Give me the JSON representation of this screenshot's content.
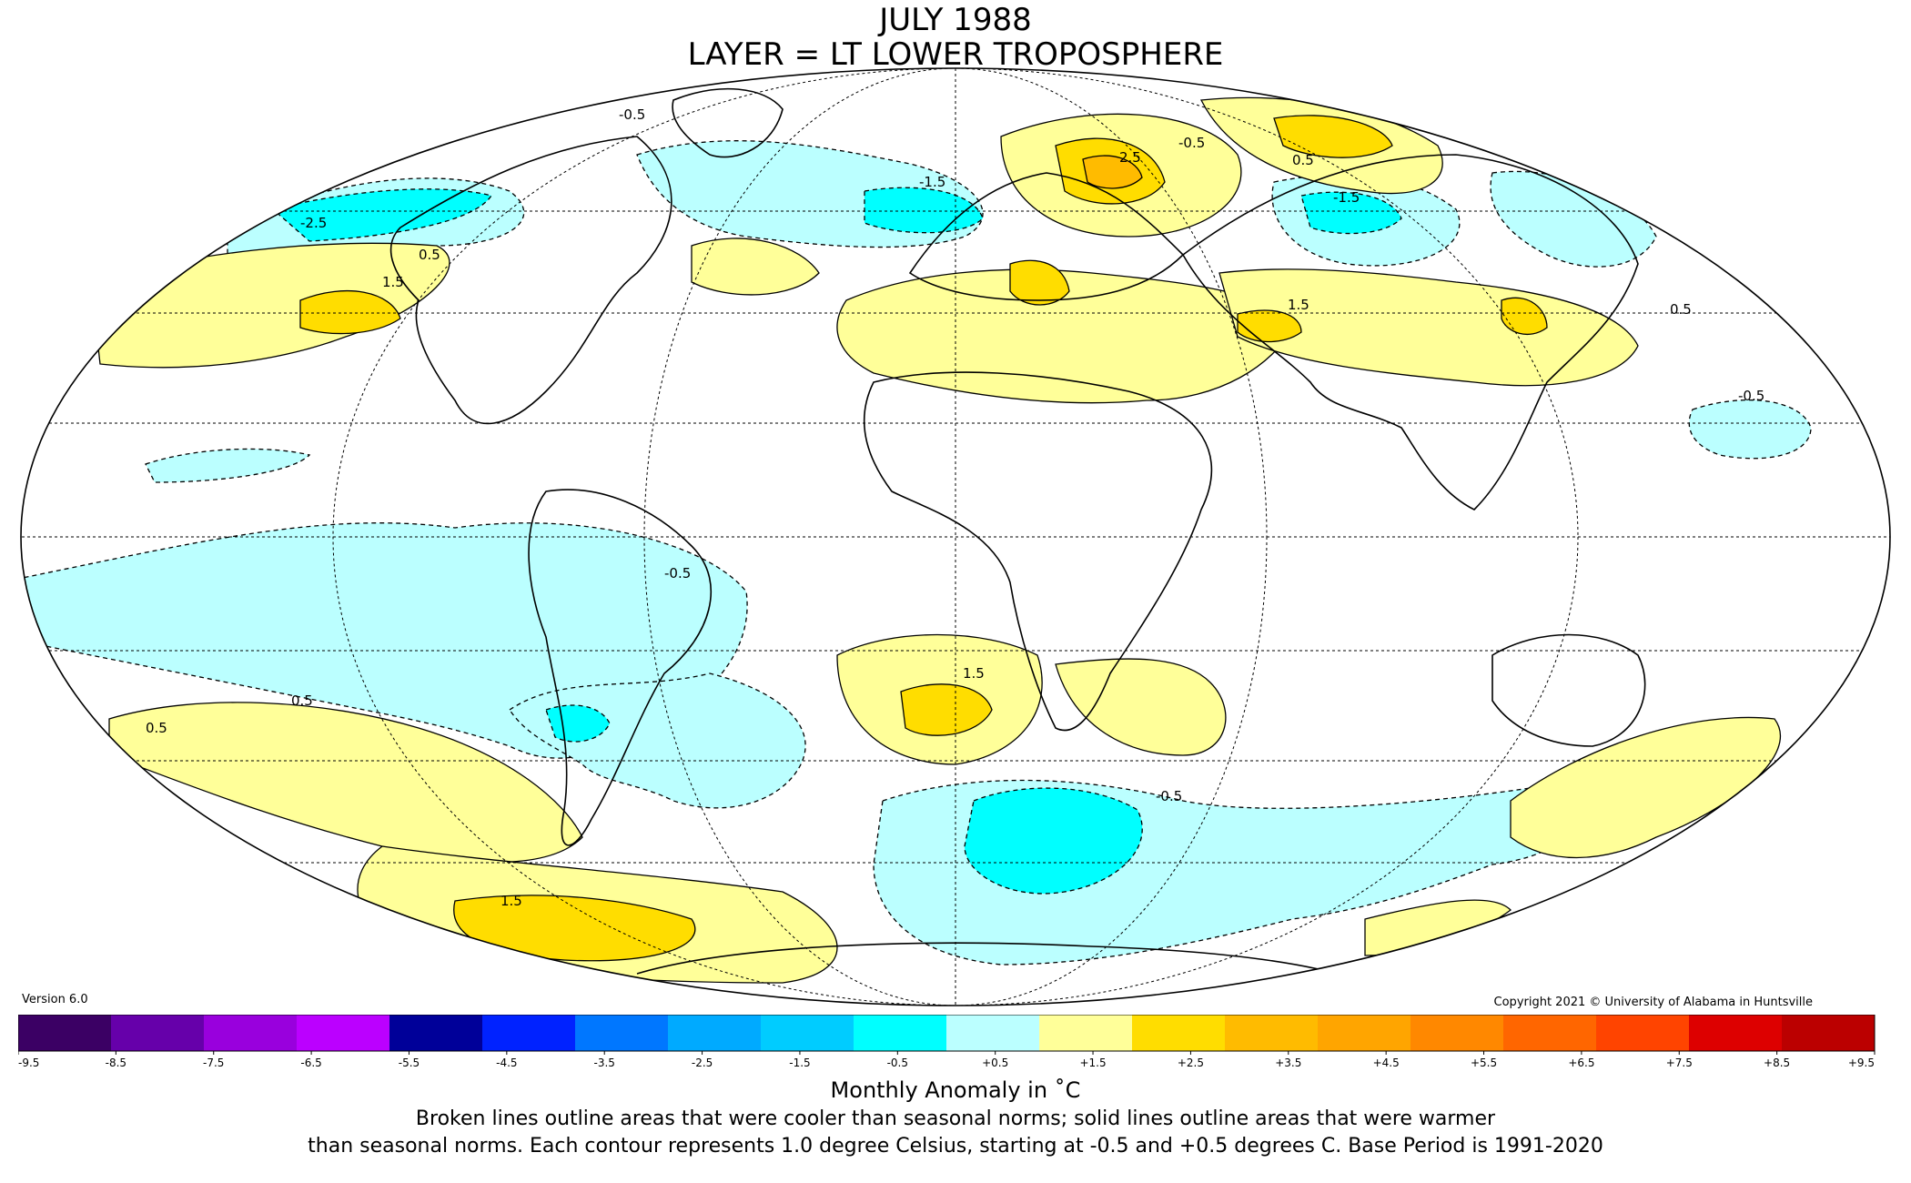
{
  "title": "JULY 1988",
  "subtitle": "LAYER = LT LOWER TROPOSPHERE",
  "version": "Version 6.0",
  "copyright": "Copyright 2021 © University of Alabama in Huntsville",
  "colorbar": {
    "label": "Monthly Anomaly in ˚C",
    "ticks": [
      "-9.5",
      "-8.5",
      "-7.5",
      "-6.5",
      "-5.5",
      "-4.5",
      "-3.5",
      "-2.5",
      "-1.5",
      "-0.5",
      "+0.5",
      "+1.5",
      "+2.5",
      "+3.5",
      "+4.5",
      "+5.5",
      "+6.5",
      "+7.5",
      "+8.5",
      "+9.5"
    ],
    "colors": [
      "#3b0064",
      "#6600aa",
      "#9900dd",
      "#bb00ff",
      "#000099",
      "#0022ff",
      "#0077ff",
      "#00aaff",
      "#00ccff",
      "#00ffff",
      "#bbffff",
      "#ffffff",
      "#ffff99",
      "#ffdd00",
      "#ffbb00",
      "#ffa500",
      "#ff8800",
      "#ff6600",
      "#ff4400",
      "#dd0000",
      "#bb0000"
    ]
  },
  "footnote": {
    "line1": "Broken lines outline areas that were cooler than seasonal norms; solid lines outline areas that were warmer",
    "line2": "than seasonal norms. Each contour represents 1.0 degree Celsius, starting at -0.5 and +0.5 degrees C. Base Period is 1991-2020"
  },
  "map_labels": [
    {
      "text": "-0.5"
    },
    {
      "text": "-0.5"
    },
    {
      "text": "-0.5"
    },
    {
      "text": "-0.5"
    },
    {
      "text": "-0.5"
    },
    {
      "text": "-1.5"
    },
    {
      "text": "-1.5"
    },
    {
      "text": "-2.5"
    },
    {
      "text": "0.5"
    },
    {
      "text": "0.5"
    },
    {
      "text": "0.5"
    },
    {
      "text": "0.5"
    },
    {
      "text": "0.5"
    },
    {
      "text": "1.5"
    },
    {
      "text": "1.5"
    },
    {
      "text": "1.5"
    },
    {
      "text": "1.5"
    },
    {
      "text": "2.5"
    }
  ]
}
